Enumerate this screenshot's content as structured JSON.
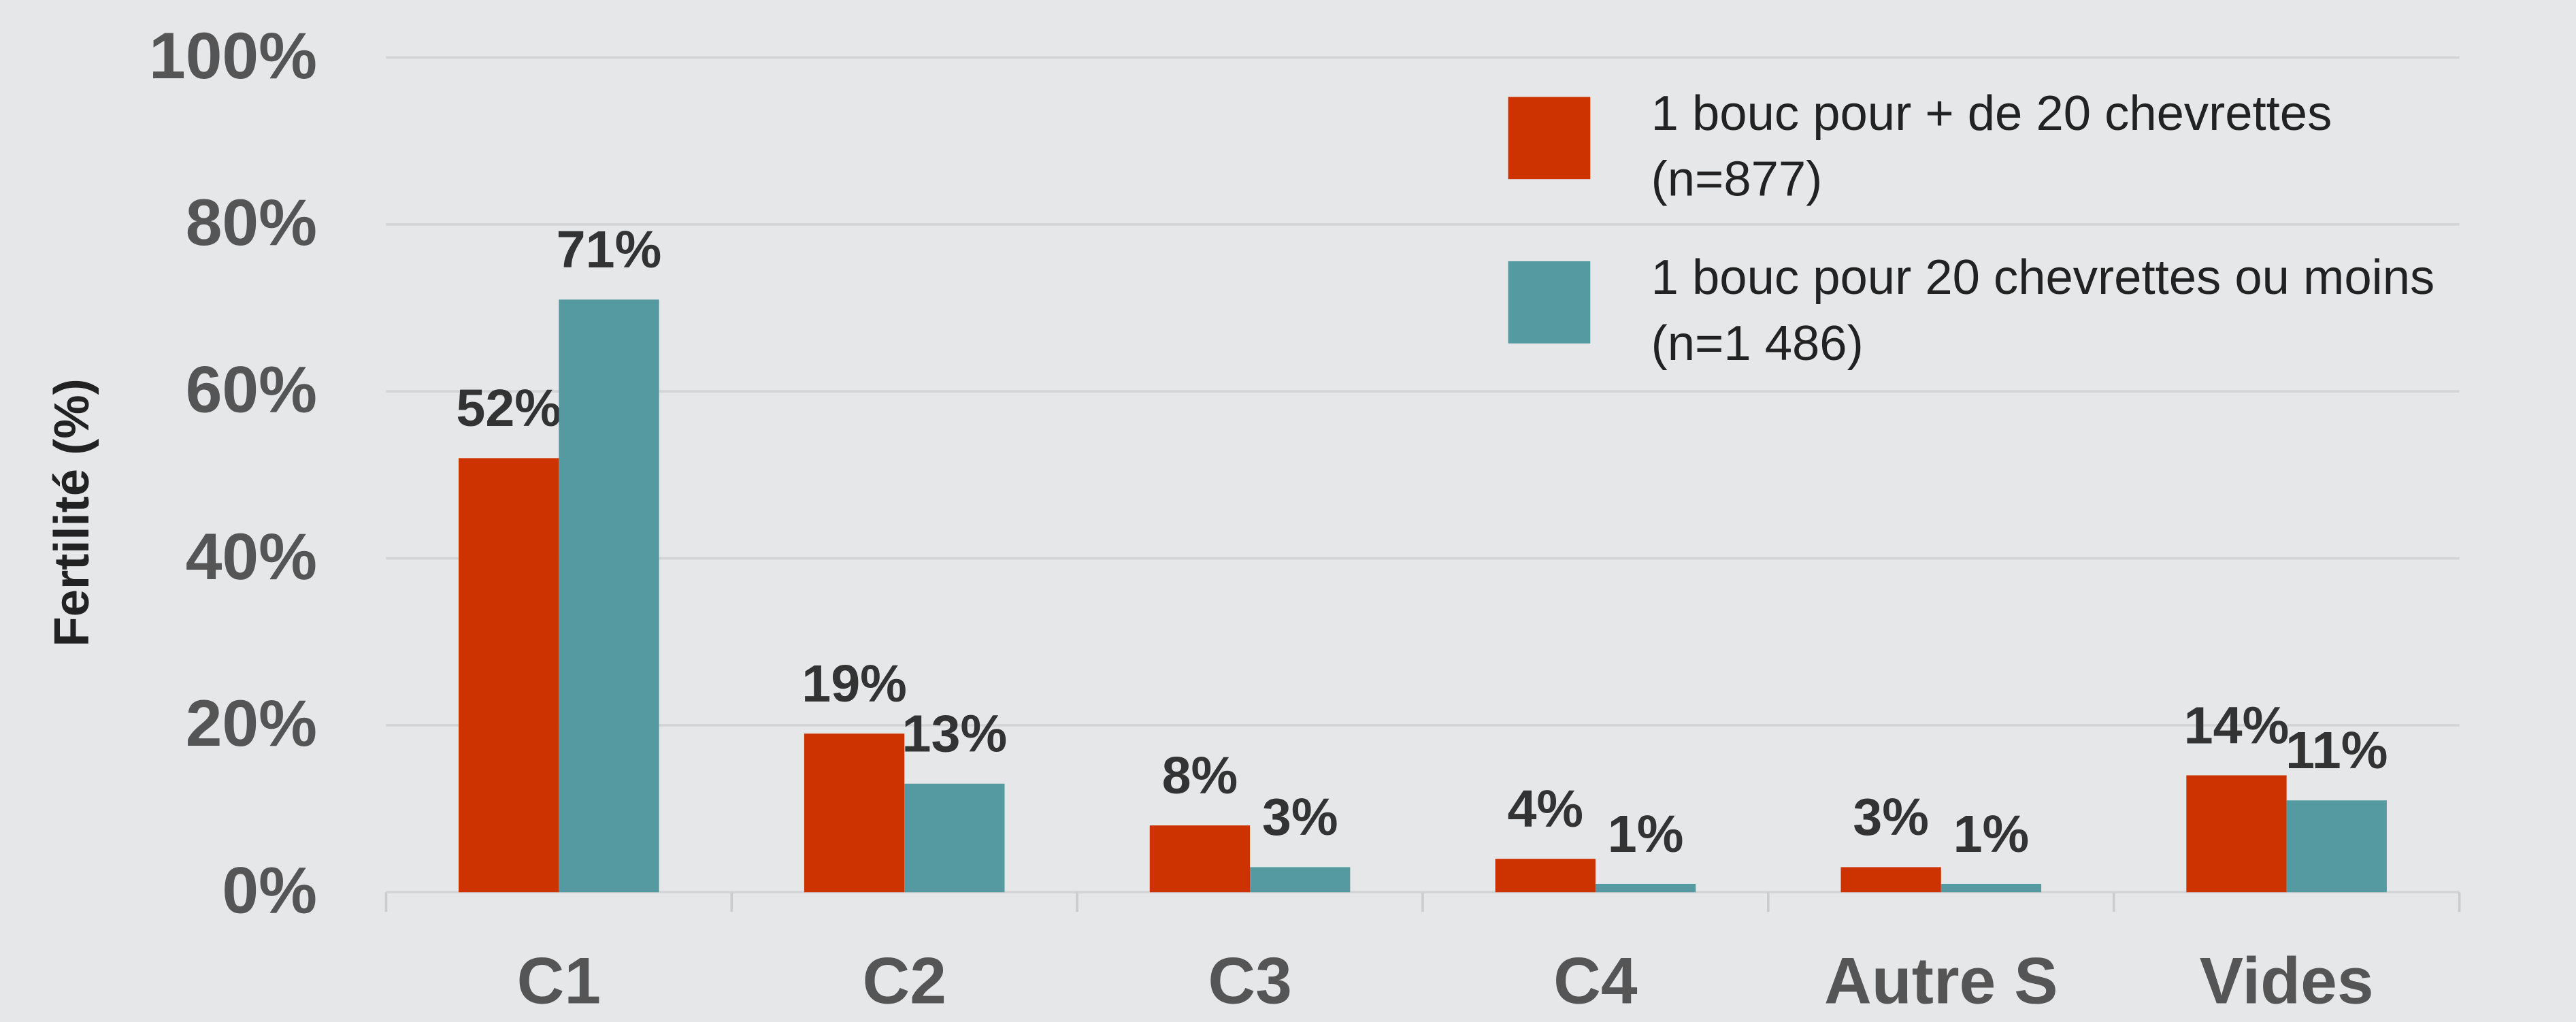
{
  "chart_data": {
    "type": "bar",
    "y_label": "Fertilité (%)",
    "categories": [
      "C1",
      "C2",
      "C3",
      "C4",
      "Autre S",
      "Vides"
    ],
    "series": [
      {
        "name": "1 bouc pour + de 20 chevrettes\n(n=877)",
        "color": "#cc3300",
        "values": [
          52,
          19,
          8,
          4,
          3,
          14
        ],
        "value_labels": [
          "52%",
          "19%",
          "8%",
          "4%",
          "3%",
          "14%"
        ]
      },
      {
        "name": "1 bouc pour 20 chevrettes ou moins\n(n=1 486)",
        "color": "#559aa0",
        "values": [
          71,
          13,
          3,
          1,
          1,
          11
        ],
        "value_labels": [
          "71%",
          "13%",
          "3%",
          "1%",
          "1%",
          "11%"
        ]
      }
    ],
    "ylim": [
      0,
      100
    ],
    "yticks": [
      {
        "value": 0,
        "label": "0%"
      },
      {
        "value": 20,
        "label": "20%"
      },
      {
        "value": 40,
        "label": "40%"
      },
      {
        "value": 60,
        "label": "60%"
      },
      {
        "value": 80,
        "label": "80%"
      },
      {
        "value": 100,
        "label": "100%"
      }
    ],
    "grid": true,
    "legend": "top-right"
  }
}
